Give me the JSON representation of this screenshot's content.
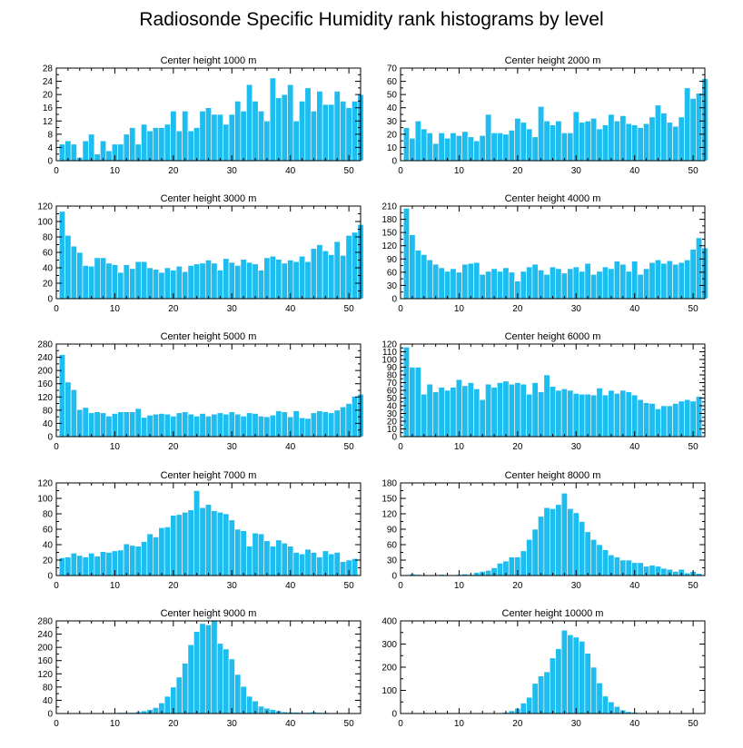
{
  "title": "Radiosonde Specific Humidity rank histograms by level",
  "colors": {
    "bar": "#1ebdf0",
    "bar_edge": "#ffffff",
    "axis": "#000000"
  },
  "chart_data": [
    {
      "type": "bar",
      "title": "Center height 1000 m",
      "xlim": [
        0,
        52
      ],
      "ylim": [
        0,
        28
      ],
      "xticks": [
        0,
        10,
        20,
        30,
        40,
        50
      ],
      "yticks": [
        0,
        4,
        8,
        12,
        16,
        20,
        24,
        28
      ],
      "values": [
        5,
        6,
        5,
        1,
        6,
        8,
        2,
        6,
        3,
        5,
        5,
        8,
        10,
        5,
        11,
        9,
        10,
        10,
        11,
        15,
        9,
        15,
        9,
        10,
        15,
        16,
        14,
        14,
        11,
        14,
        18,
        15,
        23,
        18,
        15,
        12,
        25,
        19,
        20,
        23,
        12,
        18,
        22,
        15,
        21,
        17,
        17,
        21,
        18,
        16,
        18,
        20
      ]
    },
    {
      "type": "bar",
      "title": "Center height 2000 m",
      "xlim": [
        0,
        52
      ],
      "ylim": [
        0,
        70
      ],
      "xticks": [
        0,
        10,
        20,
        30,
        40,
        50
      ],
      "yticks": [
        0,
        10,
        20,
        30,
        40,
        50,
        60,
        70
      ],
      "values": [
        25,
        17,
        30,
        24,
        21,
        13,
        21,
        17,
        21,
        19,
        22,
        18,
        15,
        19,
        35,
        21,
        21,
        20,
        23,
        32,
        29,
        24,
        18,
        41,
        30,
        27,
        30,
        21,
        21,
        37,
        29,
        30,
        32,
        24,
        27,
        35,
        30,
        34,
        28,
        27,
        25,
        28,
        33,
        42,
        36,
        29,
        26,
        33,
        55,
        47,
        51,
        62
      ]
    },
    {
      "type": "bar",
      "title": "Center height 3000 m",
      "xlim": [
        0,
        52
      ],
      "ylim": [
        0,
        120
      ],
      "xticks": [
        0,
        10,
        20,
        30,
        40,
        50
      ],
      "yticks": [
        0,
        20,
        40,
        60,
        80,
        100,
        120
      ],
      "values": [
        113,
        82,
        68,
        60,
        43,
        42,
        53,
        53,
        46,
        44,
        34,
        44,
        39,
        48,
        48,
        40,
        38,
        34,
        40,
        37,
        42,
        35,
        43,
        45,
        46,
        50,
        46,
        37,
        52,
        47,
        43,
        51,
        47,
        45,
        37,
        53,
        55,
        51,
        46,
        50,
        48,
        55,
        48,
        65,
        70,
        62,
        57,
        74,
        56,
        82,
        86,
        96
      ]
    },
    {
      "type": "bar",
      "title": "Center height 4000 m",
      "xlim": [
        0,
        52
      ],
      "ylim": [
        0,
        210
      ],
      "xticks": [
        0,
        10,
        20,
        30,
        40,
        50
      ],
      "yticks": [
        0,
        30,
        60,
        90,
        120,
        150,
        180,
        210
      ],
      "values": [
        205,
        145,
        110,
        100,
        88,
        78,
        70,
        62,
        68,
        60,
        78,
        80,
        82,
        55,
        62,
        68,
        62,
        70,
        60,
        40,
        62,
        72,
        78,
        65,
        55,
        72,
        68,
        58,
        68,
        72,
        62,
        80,
        55,
        62,
        72,
        68,
        85,
        78,
        62,
        85,
        55,
        68,
        82,
        88,
        80,
        86,
        78,
        82,
        88,
        112,
        138,
        115
      ]
    },
    {
      "type": "bar",
      "title": "Center height 5000 m",
      "xlim": [
        0,
        52
      ],
      "ylim": [
        0,
        280
      ],
      "xticks": [
        0,
        10,
        20,
        30,
        40,
        50
      ],
      "yticks": [
        0,
        40,
        80,
        120,
        160,
        200,
        240,
        280
      ],
      "values": [
        248,
        165,
        142,
        82,
        88,
        72,
        75,
        72,
        62,
        70,
        75,
        75,
        75,
        85,
        58,
        65,
        68,
        70,
        68,
        62,
        72,
        75,
        68,
        62,
        70,
        62,
        68,
        72,
        68,
        75,
        68,
        62,
        72,
        70,
        62,
        60,
        65,
        78,
        75,
        60,
        78,
        57,
        55,
        72,
        78,
        75,
        72,
        80,
        90,
        100,
        122,
        128
      ]
    },
    {
      "type": "bar",
      "title": "Center height 6000 m",
      "xlim": [
        0,
        52
      ],
      "ylim": [
        0,
        120
      ],
      "xticks": [
        0,
        10,
        20,
        30,
        40,
        50
      ],
      "yticks": [
        0,
        10,
        20,
        30,
        40,
        50,
        60,
        70,
        80,
        90,
        100,
        110,
        120
      ],
      "values": [
        116,
        90,
        90,
        55,
        68,
        58,
        64,
        60,
        64,
        74,
        66,
        70,
        62,
        48,
        68,
        64,
        70,
        72,
        68,
        70,
        68,
        55,
        70,
        58,
        80,
        65,
        60,
        62,
        60,
        56,
        55,
        55,
        54,
        63,
        54,
        60,
        56,
        60,
        58,
        54,
        48,
        44,
        43,
        36,
        40,
        40,
        43,
        46,
        48,
        46,
        52
      ]
    },
    {
      "type": "bar",
      "title": "Center height 7000 m",
      "xlim": [
        0,
        52
      ],
      "ylim": [
        0,
        120
      ],
      "xticks": [
        0,
        10,
        20,
        30,
        40,
        50
      ],
      "yticks": [
        0,
        20,
        40,
        60,
        80,
        100,
        120
      ],
      "values": [
        23,
        24,
        29,
        26,
        24,
        29,
        25,
        31,
        30,
        32,
        33,
        41,
        39,
        38,
        44,
        54,
        50,
        62,
        63,
        78,
        79,
        82,
        85,
        110,
        88,
        92,
        84,
        82,
        80,
        72,
        60,
        58,
        38,
        55,
        54,
        45,
        38,
        46,
        42,
        38,
        30,
        28,
        34,
        30,
        24,
        32,
        28,
        30,
        18,
        20,
        22
      ]
    },
    {
      "type": "bar",
      "title": "Center height 8000 m",
      "xlim": [
        0,
        52
      ],
      "ylim": [
        0,
        180
      ],
      "xticks": [
        0,
        10,
        20,
        30,
        40,
        50
      ],
      "yticks": [
        0,
        30,
        60,
        90,
        120,
        150,
        180
      ],
      "values": [
        1,
        3,
        2,
        1,
        1,
        1,
        2,
        1,
        1,
        2,
        3,
        2,
        6,
        8,
        10,
        15,
        24,
        28,
        36,
        36,
        48,
        70,
        90,
        115,
        132,
        130,
        138,
        160,
        130,
        122,
        105,
        85,
        70,
        60,
        50,
        40,
        36,
        30,
        30,
        25,
        25,
        18,
        20,
        18,
        14,
        12,
        8,
        12,
        5,
        8,
        4
      ]
    },
    {
      "type": "bar",
      "title": "Center height 9000 m",
      "xlim": [
        0,
        52
      ],
      "ylim": [
        0,
        280
      ],
      "xticks": [
        0,
        10,
        20,
        30,
        40,
        50
      ],
      "yticks": [
        0,
        40,
        80,
        120,
        160,
        200,
        240,
        280
      ],
      "values": [
        1,
        1,
        1,
        1,
        1,
        1,
        1,
        1,
        1,
        2,
        3,
        3,
        3,
        5,
        8,
        12,
        18,
        32,
        52,
        80,
        110,
        152,
        208,
        248,
        272,
        268,
        280,
        212,
        195,
        165,
        118,
        82,
        52,
        38,
        22,
        16,
        12,
        8,
        5,
        4,
        4,
        3,
        3,
        5,
        3,
        3,
        1,
        1,
        1,
        1,
        1
      ]
    },
    {
      "type": "bar",
      "title": "Center height 10000 m",
      "xlim": [
        0,
        52
      ],
      "ylim": [
        0,
        400
      ],
      "xticks": [
        0,
        10,
        20,
        30,
        40,
        50
      ],
      "yticks": [
        0,
        100,
        200,
        300,
        400
      ],
      "values": [
        1,
        1,
        1,
        1,
        1,
        1,
        1,
        1,
        1,
        1,
        1,
        1,
        1,
        1,
        1,
        2,
        3,
        5,
        12,
        22,
        45,
        70,
        130,
        162,
        180,
        240,
        280,
        360,
        340,
        330,
        312,
        260,
        200,
        132,
        75,
        50,
        30,
        15,
        8,
        5,
        3,
        2,
        2,
        1,
        1,
        1,
        1,
        1,
        1,
        1,
        1
      ]
    }
  ]
}
